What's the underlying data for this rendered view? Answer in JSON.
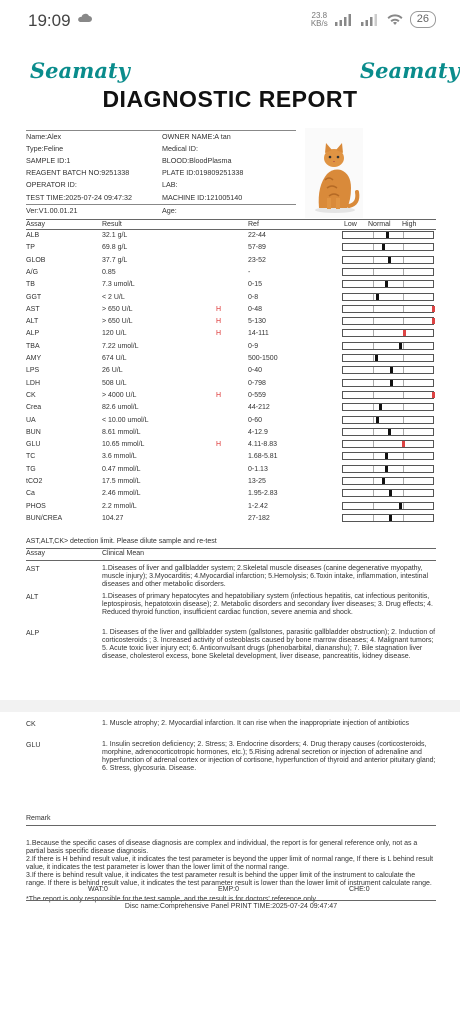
{
  "status_bar": {
    "time": "19:09",
    "net_speed": "23.8",
    "net_unit": "KB/s",
    "battery": "26"
  },
  "brand": {
    "logo": "Seamaty"
  },
  "report": {
    "title": "DIAGNOSTIC REPORT"
  },
  "info": {
    "name": "Name:Alex",
    "owner": "OWNER NAME:A tan",
    "type": "Type:Feline",
    "medical_id": "Medical ID:",
    "sample_id": "SAMPLE ID:1",
    "blood": "BLOOD:BloodPlasma",
    "reagent": "REAGENT BATCH NO:9251338",
    "plate": "PLATE ID:019809251338",
    "operator": "OPERATOR ID:",
    "lab": "LAB:",
    "test_time": "TEST TIME:2025-07-24 09:47:32",
    "machine": "MACHINE ID:121005140",
    "version": "Ver:V1.00.01.21",
    "age": "Age:"
  },
  "table": {
    "headers": {
      "assay": "Assay",
      "result": "Result",
      "ref": "Ref",
      "low": "Low",
      "normal": "Normal",
      "high": "High"
    },
    "rows": [
      {
        "assay": "ALB",
        "result": "32.1 g/L",
        "flag": "",
        "ref": "22-44",
        "level": 0.48
      },
      {
        "assay": "TP",
        "result": "69.8 g/L",
        "flag": "",
        "ref": "57-89",
        "level": 0.44
      },
      {
        "assay": "GLOB",
        "result": "37.7 g/L",
        "flag": "",
        "ref": "23-52",
        "level": 0.5
      },
      {
        "assay": "A/G",
        "result": "0.85",
        "flag": "",
        "ref": "-",
        "level": null
      },
      {
        "assay": "TB",
        "result": "7.3 umol/L",
        "flag": "",
        "ref": "0-15",
        "level": 0.47
      },
      {
        "assay": "GGT",
        "result": "< 2 U/L",
        "flag": "",
        "ref": "0-8",
        "level": 0.38
      },
      {
        "assay": "AST",
        "result": "> 650 U/L",
        "flag": "H",
        "ref": "0-48",
        "level": 0.98
      },
      {
        "assay": "ALT",
        "result": "> 650 U/L",
        "flag": "H",
        "ref": "5-130",
        "level": 0.98
      },
      {
        "assay": "ALP",
        "result": "120 U/L",
        "flag": "H",
        "ref": "14-111",
        "level": 0.67
      },
      {
        "assay": "TBA",
        "result": "7.22 umol/L",
        "flag": "",
        "ref": "0-9",
        "level": 0.62
      },
      {
        "assay": "AMY",
        "result": "674 U/L",
        "flag": "",
        "ref": "500-1500",
        "level": 0.36
      },
      {
        "assay": "LPS",
        "result": "26 U/L",
        "flag": "",
        "ref": "0-40",
        "level": 0.53
      },
      {
        "assay": "LDH",
        "result": "508 U/L",
        "flag": "",
        "ref": "0-798",
        "level": 0.53
      },
      {
        "assay": "CK",
        "result": "> 4000 U/L",
        "flag": "H",
        "ref": "0-559",
        "level": 0.98
      },
      {
        "assay": "Crea",
        "result": "82.6 umol/L",
        "flag": "",
        "ref": "44-212",
        "level": 0.41
      },
      {
        "assay": "UA",
        "result": "< 10.00 umol/L",
        "flag": "",
        "ref": "0-60",
        "level": 0.38
      },
      {
        "assay": "BUN",
        "result": "8.61 mmol/L",
        "flag": "",
        "ref": "4-12.9",
        "level": 0.5
      },
      {
        "assay": "GLU",
        "result": "10.65 mmol/L",
        "flag": "H",
        "ref": "4.11-8.83",
        "level": 0.66
      },
      {
        "assay": "TC",
        "result": "3.6 mmol/L",
        "flag": "",
        "ref": "1.68-5.81",
        "level": 0.47
      },
      {
        "assay": "TG",
        "result": "0.47 mmol/L",
        "flag": "",
        "ref": "0-1.13",
        "level": 0.47
      },
      {
        "assay": "tCO2",
        "result": "17.5 mmol/L",
        "flag": "",
        "ref": "13-25",
        "level": 0.44
      },
      {
        "assay": "Ca",
        "result": "2.46 mmol/L",
        "flag": "",
        "ref": "1.95-2.83",
        "level": 0.52
      },
      {
        "assay": "PHOS",
        "result": "2.2 mmol/L",
        "flag": "",
        "ref": "1-2.42",
        "level": 0.62
      },
      {
        "assay": "BUN/CREA",
        "result": "104.27",
        "flag": "",
        "ref": "27-182",
        "level": 0.52
      }
    ]
  },
  "detection_note": "AST,ALT,CK> detection limit. Please dilute sample and re-test",
  "clinical": {
    "header_assay": "Assay",
    "header_mean": "Clinical Mean",
    "items": [
      {
        "assay": "AST",
        "text": "1.Diseases of liver and gallbladder system; 2.Skeletal muscle diseases (canine degenerative myopathy, muscle injury); 3.Myocarditis; 4.Myocardial infarction; 5.Hemolysis; 6.Toxin intake, inflammation, intestinal diseases and other metabolic disorders."
      },
      {
        "assay": "ALT",
        "text": "1.Diseases of primary hepatocytes and hepatobiliary system (infectious hepatitis, cat infectious peritonitis, leptospirosis, hepatotoxin disease); 2. Metabolic disorders and secondary liver diseases; 3. Drug effects; 4. Reduced thyroid function, insufficient cardiac function, severe anemia and shock."
      },
      {
        "assay": "ALP",
        "text": "1. Diseases of the liver and gallbladder system (gallstones, parasitic gallbladder obstruction); 2. Induction of corticosteroids ; 3. Increased activity of osteoblasts caused by bone marrow diseases; 4. Malignant tumors; 5. Acute toxic liver injury ect; 6. Anticonvulsant drugs (phenobarbital, diananshu); 7. Bile stagnation liver disease, cholesterol excess, bone Skeletal development, liver disease, pancreatitis, kidney disease."
      },
      {
        "assay": "CK",
        "text": "1. Muscle atrophy; 2. Myocardial infarction. It can rise when the inappropriate injection of antibiotics"
      },
      {
        "assay": "GLU",
        "text": "1. Insulin secretion deficiency; 2. Stress; 3. Endocrine disorders; 4. Drug therapy causes (corticosteroids, morphine, adrenocorticotropic hormones, etc.); 5.Rising adrenal secretion or injection of adrenaline and hyperfunction of adrenal cortex or injection of cortisone, hyperfunction of thyroid and anterior pituitary gland; 6. Stress, glycosuria. Disease."
      }
    ]
  },
  "remark": {
    "label": "Remark",
    "p1": "1.Because the specific cases of disease diagnosis are complex and individual, the report is for general reference only, not as a partial basis specific disease diagnosis.",
    "p2": "2.If there is H behind result value, it indicates the test parameter is beyond the upper limit of normal range, If there is L behind result value, it indicates the test parameter is lower than the lower limit of the normal range.",
    "p3": "3.If there is behind result value, it indicates the test parameter result is behind the upper limit of the instrument to calculate the range. If there is behind result value, it indicates the test parameter result is lower than the lower limit of instrument calculate range.",
    "p4": "*The report is only responsible for the test sample, and the result is for doctors' reference only."
  },
  "footer": {
    "wat": "WAT:0",
    "emp": "EMP:0",
    "che": "CHE:0",
    "disc": "Disc name:Comprehensive Panel",
    "print_time": "PRINT TIME:2025-07-24 09:47:47"
  },
  "colors": {
    "brand": "#0a8c8c",
    "high_flag": "#dd3333"
  }
}
